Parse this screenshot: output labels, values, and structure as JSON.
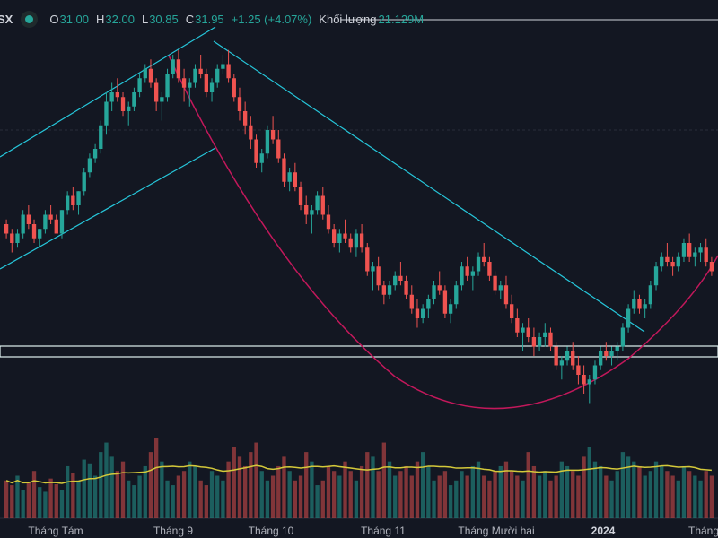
{
  "header": {
    "symbol": "SX",
    "status_color": "#26a69a",
    "open_label": "O",
    "open_value": "31.00",
    "high_label": "H",
    "high_value": "32.00",
    "low_label": "L",
    "low_value": "30.85",
    "close_label": "C",
    "close_value": "31.95",
    "change_value": "+1.25 (+4.07%)",
    "volume_label": "Khối lượng",
    "volume_value": "21.129M"
  },
  "chart_data": {
    "type": "candlestick",
    "x_tick_labels": [
      "Tháng Tám",
      "Tháng 9",
      "Tháng 10",
      "Tháng 11",
      "Tháng Mười hai",
      "2024",
      "Tháng"
    ],
    "colors": {
      "background": "#131722",
      "up": "#26a69a",
      "down": "#ef5350",
      "volume_ma": "#d4c93a",
      "trendline": "#26c6da",
      "arc": "#c2185b",
      "support": "#e0f2f1"
    },
    "ohlc": [
      [
        100,
        101,
        97,
        98
      ],
      [
        98,
        99,
        94,
        96
      ],
      [
        96,
        99,
        95,
        98
      ],
      [
        98,
        103,
        97,
        102
      ],
      [
        102,
        104,
        99,
        100
      ],
      [
        100,
        101,
        96,
        97
      ],
      [
        97,
        99,
        95,
        99
      ],
      [
        99,
        103,
        98,
        102
      ],
      [
        102,
        104,
        100,
        101
      ],
      [
        101,
        102,
        98,
        98
      ],
      [
        98,
        103,
        97,
        103
      ],
      [
        103,
        107,
        102,
        106
      ],
      [
        106,
        108,
        103,
        104
      ],
      [
        104,
        107,
        102,
        107
      ],
      [
        107,
        112,
        106,
        111
      ],
      [
        111,
        115,
        110,
        114
      ],
      [
        114,
        117,
        113,
        116
      ],
      [
        116,
        122,
        115,
        121
      ],
      [
        121,
        128,
        119,
        126
      ],
      [
        126,
        130,
        124,
        128
      ],
      [
        128,
        131,
        126,
        127
      ],
      [
        127,
        128,
        123,
        124
      ],
      [
        124,
        126,
        121,
        125
      ],
      [
        125,
        129,
        124,
        128
      ],
      [
        128,
        132,
        127,
        131
      ],
      [
        131,
        134,
        130,
        133
      ],
      [
        133,
        135,
        129,
        130
      ],
      [
        130,
        131,
        124,
        126
      ],
      [
        126,
        128,
        122,
        127
      ],
      [
        127,
        133,
        126,
        132
      ],
      [
        132,
        136,
        131,
        135
      ],
      [
        135,
        137,
        130,
        131
      ],
      [
        131,
        133,
        126,
        129
      ],
      [
        129,
        131,
        125,
        130
      ],
      [
        130,
        134,
        129,
        133
      ],
      [
        133,
        136,
        131,
        132
      ],
      [
        132,
        133,
        127,
        128
      ],
      [
        128,
        131,
        126,
        130
      ],
      [
        130,
        134,
        129,
        133
      ],
      [
        133,
        136,
        132,
        134
      ],
      [
        134,
        137,
        130,
        131
      ],
      [
        131,
        132,
        126,
        127
      ],
      [
        127,
        129,
        122,
        124
      ],
      [
        124,
        126,
        119,
        121
      ],
      [
        121,
        123,
        116,
        118
      ],
      [
        118,
        119,
        112,
        113
      ],
      [
        113,
        116,
        111,
        115
      ],
      [
        115,
        121,
        114,
        120
      ],
      [
        120,
        123,
        117,
        118
      ],
      [
        118,
        120,
        113,
        114
      ],
      [
        114,
        115,
        108,
        109
      ],
      [
        109,
        112,
        107,
        111
      ],
      [
        111,
        113,
        107,
        108
      ],
      [
        108,
        109,
        103,
        104
      ],
      [
        104,
        106,
        100,
        102
      ],
      [
        102,
        104,
        98,
        103
      ],
      [
        103,
        107,
        102,
        106
      ],
      [
        106,
        108,
        101,
        102
      ],
      [
        102,
        104,
        98,
        99
      ],
      [
        99,
        100,
        95,
        96
      ],
      [
        96,
        99,
        94,
        98
      ],
      [
        98,
        101,
        96,
        97
      ],
      [
        97,
        98,
        94,
        95
      ],
      [
        95,
        99,
        93,
        98
      ],
      [
        98,
        100,
        94,
        95
      ],
      [
        95,
        96,
        89,
        90
      ],
      [
        90,
        92,
        86,
        91
      ],
      [
        91,
        93,
        86,
        87
      ],
      [
        87,
        88,
        83,
        85
      ],
      [
        85,
        88,
        84,
        87
      ],
      [
        87,
        90,
        86,
        89
      ],
      [
        89,
        92,
        87,
        88
      ],
      [
        88,
        89,
        84,
        85
      ],
      [
        85,
        87,
        81,
        82
      ],
      [
        82,
        84,
        78,
        80
      ],
      [
        80,
        83,
        79,
        82
      ],
      [
        82,
        85,
        80,
        84
      ],
      [
        84,
        88,
        83,
        87
      ],
      [
        87,
        90,
        85,
        86
      ],
      [
        86,
        87,
        80,
        81
      ],
      [
        81,
        84,
        79,
        83
      ],
      [
        83,
        88,
        82,
        87
      ],
      [
        87,
        92,
        86,
        91
      ],
      [
        91,
        93,
        88,
        89
      ],
      [
        89,
        91,
        86,
        90
      ],
      [
        90,
        94,
        89,
        93
      ],
      [
        93,
        96,
        91,
        92
      ],
      [
        92,
        93,
        88,
        89
      ],
      [
        89,
        90,
        85,
        86
      ],
      [
        86,
        88,
        84,
        87
      ],
      [
        87,
        89,
        82,
        83
      ],
      [
        83,
        85,
        79,
        80
      ],
      [
        80,
        82,
        76,
        77
      ],
      [
        77,
        79,
        73,
        78
      ],
      [
        78,
        80,
        75,
        76
      ],
      [
        76,
        78,
        72,
        74
      ],
      [
        74,
        77,
        73,
        76
      ],
      [
        76,
        79,
        74,
        77
      ],
      [
        77,
        78,
        73,
        74
      ],
      [
        74,
        75,
        69,
        70
      ],
      [
        70,
        72,
        67,
        71
      ],
      [
        71,
        74,
        70,
        73
      ],
      [
        73,
        75,
        69,
        70
      ],
      [
        70,
        72,
        66,
        68
      ],
      [
        68,
        70,
        64,
        66
      ],
      [
        66,
        68,
        62,
        67
      ],
      [
        67,
        71,
        66,
        70
      ],
      [
        70,
        74,
        69,
        73
      ],
      [
        73,
        75,
        71,
        72
      ],
      [
        72,
        74,
        70,
        73
      ],
      [
        73,
        75,
        71,
        74
      ],
      [
        74,
        79,
        73,
        78
      ],
      [
        78,
        83,
        77,
        82
      ],
      [
        82,
        86,
        81,
        84
      ],
      [
        84,
        85,
        81,
        82
      ],
      [
        82,
        84,
        80,
        83
      ],
      [
        83,
        88,
        82,
        87
      ],
      [
        87,
        92,
        86,
        91
      ],
      [
        91,
        94,
        90,
        93
      ],
      [
        93,
        96,
        91,
        92
      ],
      [
        92,
        93,
        89,
        91
      ],
      [
        91,
        94,
        90,
        93
      ],
      [
        93,
        97,
        92,
        96
      ],
      [
        96,
        98,
        92,
        93
      ],
      [
        93,
        95,
        91,
        94
      ],
      [
        94,
        96,
        92,
        95
      ],
      [
        95,
        97,
        91,
        92
      ],
      [
        92,
        93,
        89,
        90
      ]
    ],
    "volume": [
      40,
      35,
      45,
      30,
      38,
      50,
      33,
      28,
      42,
      36,
      30,
      55,
      48,
      40,
      62,
      58,
      45,
      70,
      80,
      65,
      50,
      60,
      40,
      35,
      45,
      55,
      70,
      85,
      60,
      40,
      35,
      45,
      50,
      60,
      55,
      40,
      35,
      50,
      45,
      40,
      60,
      75,
      65,
      55,
      70,
      80,
      50,
      40,
      45,
      55,
      65,
      50,
      40,
      45,
      70,
      60,
      35,
      40,
      55,
      50,
      45,
      60,
      50,
      40,
      55,
      70,
      65,
      50,
      80,
      60,
      45,
      50,
      55,
      45,
      60,
      70,
      55,
      40,
      45,
      50,
      35,
      40,
      50,
      45,
      55,
      60,
      45,
      40,
      50,
      55,
      60,
      50,
      45,
      40,
      70,
      55,
      45,
      50,
      40,
      45,
      60,
      55,
      50,
      45,
      65,
      75,
      60,
      55,
      45,
      40,
      50,
      70,
      65,
      60,
      55,
      45,
      50,
      60,
      55,
      50,
      45,
      40,
      55,
      50,
      45,
      40,
      50,
      45
    ]
  }
}
